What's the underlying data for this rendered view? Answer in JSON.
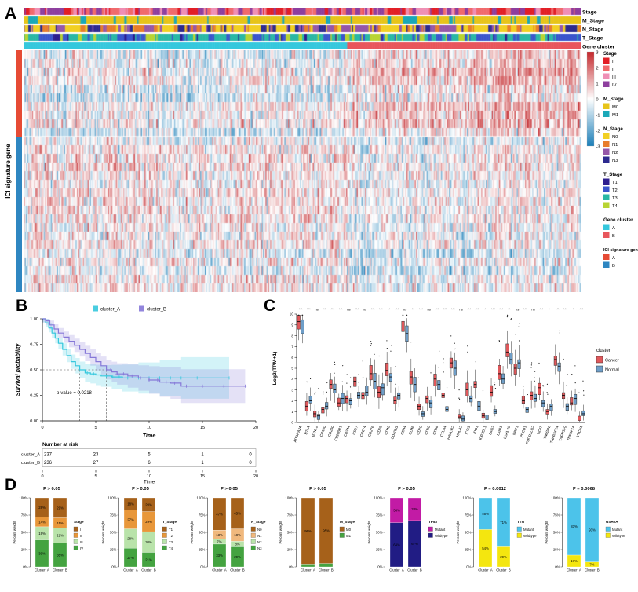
{
  "panels": {
    "a": "A",
    "b": "B",
    "c": "C",
    "d": "D"
  },
  "chart_data": [
    {
      "id": "heatmap",
      "type": "heatmap",
      "left_label": "ICI signature gene",
      "columns": 470,
      "value_range": [
        -3,
        3
      ],
      "colormap": {
        "max_color": "#c3272b",
        "mid_color": "#ffffff",
        "min_color": "#1b7eb8"
      },
      "row_groups": [
        {
          "name": "A",
          "color": "#e64b35",
          "rows": 10
        },
        {
          "name": "B",
          "color": "#2e86c1",
          "rows": 18
        }
      ],
      "cluster_split": 0.58,
      "tracks": [
        {
          "label": "Stage",
          "categories": [
            "I",
            "II",
            "III",
            "IV"
          ],
          "colors": [
            "#e21f26",
            "#f06a6c",
            "#ef8fb5",
            "#8e3f9e"
          ],
          "weights": [
            0.2,
            0.25,
            0.25,
            0.3
          ]
        },
        {
          "label": "M_Stage",
          "categories": [
            "M0",
            "M1"
          ],
          "colors": [
            "#e7c419",
            "#1ba8b8"
          ],
          "weights": [
            0.88,
            0.12
          ]
        },
        {
          "label": "N_Stage",
          "categories": [
            "N0",
            "N1",
            "N2",
            "N3"
          ],
          "colors": [
            "#f2d023",
            "#e87d2b",
            "#9557a8",
            "#2d2a8f"
          ],
          "weights": [
            0.42,
            0.16,
            0.24,
            0.18
          ]
        },
        {
          "label": "T_Stage",
          "categories": [
            "T1",
            "T2",
            "T3",
            "T4"
          ],
          "colors": [
            "#2d1e8f",
            "#3a55cc",
            "#2ab8a5",
            "#b8d432"
          ],
          "weights": [
            0.08,
            0.26,
            0.48,
            0.18
          ]
        },
        {
          "label": "Gene cluster",
          "categories": [
            "A",
            "B"
          ],
          "colors": [
            "#35c8dd",
            "#e8565c"
          ],
          "weights": [
            0.58,
            0.42
          ]
        }
      ],
      "colorbar_ticks": [
        "3",
        "2",
        "1",
        "0",
        "-1",
        "-2",
        "-3"
      ],
      "legend_groups": [
        {
          "title": "Stage",
          "items": [
            {
              "label": "I",
              "color": "#e21f26"
            },
            {
              "label": "II",
              "color": "#f06a6c"
            },
            {
              "label": "III",
              "color": "#ef8fb5"
            },
            {
              "label": "IV",
              "color": "#8e3f9e"
            }
          ]
        },
        {
          "title": "M_Stage",
          "items": [
            {
              "label": "M0",
              "color": "#e7c419"
            },
            {
              "label": "M1",
              "color": "#1ba8b8"
            }
          ]
        },
        {
          "title": "N_Stage",
          "items": [
            {
              "label": "N0",
              "color": "#f2d023"
            },
            {
              "label": "N1",
              "color": "#e87d2b"
            },
            {
              "label": "N2",
              "color": "#9557a8"
            },
            {
              "label": "N3",
              "color": "#2d2a8f"
            }
          ]
        },
        {
          "title": "T_Stage",
          "items": [
            {
              "label": "T1",
              "color": "#2d1e8f"
            },
            {
              "label": "T2",
              "color": "#3a55cc"
            },
            {
              "label": "T3",
              "color": "#2ab8a5"
            },
            {
              "label": "T4",
              "color": "#b8d432"
            }
          ]
        },
        {
          "title": "Gene cluster",
          "items": [
            {
              "label": "A",
              "color": "#35c8dd"
            },
            {
              "label": "B",
              "color": "#e8565c"
            }
          ]
        },
        {
          "title": "ICI signature gene",
          "items": [
            {
              "label": "A",
              "color": "#e64b35"
            },
            {
              "label": "B",
              "color": "#2e86c1"
            }
          ]
        }
      ]
    },
    {
      "id": "km",
      "type": "line",
      "ylabel": "Survival probability",
      "xlabel": "Time",
      "pvalue": "p-value = 0.0218",
      "yticks": [
        "1.00",
        "0.75",
        "0.50",
        "0.25",
        "0.00"
      ],
      "xticks": [
        0,
        5,
        10,
        15,
        20
      ],
      "xlim": [
        0,
        20
      ],
      "ylim": [
        0,
        1
      ],
      "median_markers": {
        "surv": 0.5,
        "times": [
          3.5,
          6
        ]
      },
      "series": [
        {
          "name": "cluster_A",
          "color": "#35c8dd",
          "ci_growth": 0.013,
          "t": [
            0,
            0.3,
            0.6,
            0.9,
            1.2,
            1.5,
            1.9,
            2.3,
            2.7,
            3.1,
            3.5,
            4,
            4.5,
            5,
            5.5,
            6.5,
            7.5,
            9,
            11,
            13,
            17.5
          ],
          "s": [
            1,
            0.96,
            0.91,
            0.86,
            0.81,
            0.76,
            0.7,
            0.64,
            0.58,
            0.54,
            0.5,
            0.47,
            0.46,
            0.45,
            0.44,
            0.43,
            0.42,
            0.42,
            0.42,
            0.42,
            0.42
          ],
          "censor": [
            4.2,
            4.8,
            5.4,
            6,
            6.6,
            7.2,
            8,
            9,
            10,
            11,
            12,
            13,
            14.5,
            16,
            17.5
          ]
        },
        {
          "name": "cluster_B",
          "color": "#8678d8",
          "ci_growth": 0.01,
          "t": [
            0,
            0.3,
            0.7,
            1.1,
            1.5,
            2,
            2.5,
            3,
            3.5,
            4,
            4.5,
            5,
            5.5,
            6,
            6.5,
            7,
            8,
            9,
            10,
            11,
            12,
            13,
            19
          ],
          "s": [
            1,
            0.98,
            0.94,
            0.9,
            0.86,
            0.82,
            0.78,
            0.74,
            0.7,
            0.66,
            0.62,
            0.58,
            0.54,
            0.5,
            0.48,
            0.46,
            0.44,
            0.42,
            0.4,
            0.38,
            0.37,
            0.34,
            0.34
          ],
          "censor": [
            6.4,
            7,
            7.6,
            8.4,
            9.2,
            10,
            10.8,
            11.6,
            12.4,
            13.5,
            15,
            17,
            19
          ]
        }
      ],
      "risk_table": {
        "title": "Number at risk",
        "time_label": "Time",
        "times": [
          0,
          5,
          10,
          15,
          20
        ],
        "rows": [
          {
            "name": "cluster_A",
            "color": "#35c8dd",
            "values": [
              237,
              23,
              5,
              1,
              0
            ]
          },
          {
            "name": "cluster_B",
            "color": "#8678d8",
            "values": [
              236,
              27,
              6,
              1,
              0
            ]
          }
        ]
      }
    },
    {
      "id": "boxplot",
      "type": "boxplot",
      "ylabel": "Log2(TPM+1)",
      "ylim": [
        0,
        10
      ],
      "legend_title": "cluster",
      "series": [
        {
          "name": "Cancer",
          "color": "#e0585b"
        },
        {
          "name": "Normal",
          "color": "#6e9ec8"
        }
      ],
      "genes": [
        "ADORA2A",
        "BTLA",
        "BTNL2",
        "CD160",
        "CD200",
        "CD200R1",
        "CD244",
        "CD27",
        "CD274",
        "CD276",
        "CD28",
        "CD40",
        "CD40LG",
        "CD44",
        "CD48",
        "CD70",
        "CD80",
        "CD86",
        "CTLA4",
        "HAVCR2",
        "HHLA2",
        "ICOS",
        "IDO1",
        "KIR3DL1",
        "LAG3",
        "LAIR1",
        "LGALS9",
        "NRP1",
        "PDCD1",
        "PDCD1LG2",
        "TIGIT",
        "TMIGD2",
        "TNFRSF14",
        "TNFRSF9",
        "TNFSF14",
        "VTCN1"
      ],
      "significance": [
        "***",
        "***",
        "ns",
        "**",
        "***",
        "***",
        "ns",
        "***",
        "ns",
        "***",
        "***",
        "**",
        "***",
        "ns",
        "**",
        "***",
        "ns",
        "***",
        "***",
        "***",
        "ns",
        "***",
        "***",
        "*",
        "***",
        "***",
        "**",
        "ns",
        "***",
        "ns",
        "***",
        "*",
        "***",
        "***",
        "*",
        "***"
      ],
      "cancer_median": [
        9.3,
        1.5,
        0.8,
        1.2,
        3.5,
        1.8,
        2.2,
        3.8,
        2.5,
        4.5,
        2.8,
        4.8,
        2.0,
        8.8,
        4.2,
        1.5,
        2.2,
        4.0,
        2.5,
        5.5,
        0.5,
        3.0,
        3.5,
        0.6,
        2.8,
        4.5,
        6.5,
        5.0,
        2.0,
        2.5,
        3.2,
        1.0,
        5.8,
        2.5,
        1.8,
        0.4
      ],
      "normal_median": [
        8.8,
        2.0,
        0.6,
        1.5,
        3.0,
        2.2,
        2.0,
        2.5,
        2.8,
        3.8,
        3.2,
        4.2,
        2.5,
        8.2,
        3.5,
        0.8,
        1.8,
        3.5,
        1.2,
        5.0,
        0.3,
        2.2,
        1.5,
        0.4,
        1.0,
        4.0,
        5.8,
        5.5,
        1.2,
        2.2,
        1.8,
        1.5,
        5.2,
        1.5,
        2.2,
        0.8
      ]
    },
    {
      "id": "stacked_bars",
      "type": "bar",
      "ylabel": "Percent weight",
      "yticks": [
        "0%",
        "25%",
        "50%",
        "75%",
        "100%"
      ],
      "categories": [
        "Cluster_A",
        "Cluster_B"
      ],
      "charts": [
        {
          "title": "P > 0.05",
          "legend_title": "Stage",
          "segments": [
            {
              "label": "I",
              "color": "#a6611a",
              "values": [
                28,
                29
              ]
            },
            {
              "label": "II",
              "color": "#e8973a",
              "values": [
                14,
                15
              ]
            },
            {
              "label": "III",
              "color": "#b9e3aa",
              "values": [
                19,
                21
              ]
            },
            {
              "label": "IV",
              "color": "#44a340",
              "values": [
                39,
                35
              ]
            }
          ]
        },
        {
          "title": "P > 0.05",
          "legend_title": "T_Stage",
          "segments": [
            {
              "label": "T1",
              "color": "#a6611a",
              "values": [
                18,
                20
              ]
            },
            {
              "label": "T2",
              "color": "#e8973a",
              "values": [
                27,
                29
              ]
            },
            {
              "label": "T3",
              "color": "#b9e3aa",
              "values": [
                28,
                30
              ]
            },
            {
              "label": "T4",
              "color": "#44a340",
              "values": [
                27,
                21
              ]
            }
          ]
        },
        {
          "title": "P > 0.05",
          "legend_title": "N_Stage",
          "segments": [
            {
              "label": "N0",
              "color": "#a6611a",
              "values": [
                47,
                45
              ]
            },
            {
              "label": "N1",
              "color": "#f0b87d",
              "values": [
                13,
                18
              ]
            },
            {
              "label": "N2",
              "color": "#b9e3aa",
              "values": [
                7,
                8
              ]
            },
            {
              "label": "N3",
              "color": "#44a340",
              "values": [
                33,
                29
              ]
            }
          ]
        },
        {
          "title": "P > 0.05",
          "legend_title": "M_Stage",
          "segments": [
            {
              "label": "M0",
              "color": "#a6611a",
              "values": [
                96,
                95
              ]
            },
            {
              "label": "M1",
              "color": "#44a340",
              "values": [
                4,
                5
              ]
            }
          ]
        },
        {
          "title": "P > 0.05",
          "legend_title": "TP53",
          "segments": [
            {
              "label": "Mutant",
              "color": "#c21ba5",
              "values": [
                36,
                33
              ]
            },
            {
              "label": "Wildtype",
              "color": "#211c84",
              "values": [
                64,
                67
              ]
            }
          ]
        },
        {
          "title": "P = 0.0012",
          "legend_title": "TTN",
          "segments": [
            {
              "label": "Mutant",
              "color": "#4cc3ea",
              "values": [
                46,
                71
              ]
            },
            {
              "label": "Wildtype",
              "color": "#f4e60f",
              "values": [
                54,
                29
              ]
            }
          ]
        },
        {
          "title": "P = 0.0068",
          "legend_title": "USH2A",
          "segments": [
            {
              "label": "Mutant",
              "color": "#4cc3ea",
              "values": [
                83,
                93
              ]
            },
            {
              "label": "Wildtype",
              "color": "#f4e60f",
              "values": [
                17,
                7
              ]
            }
          ]
        }
      ]
    }
  ]
}
